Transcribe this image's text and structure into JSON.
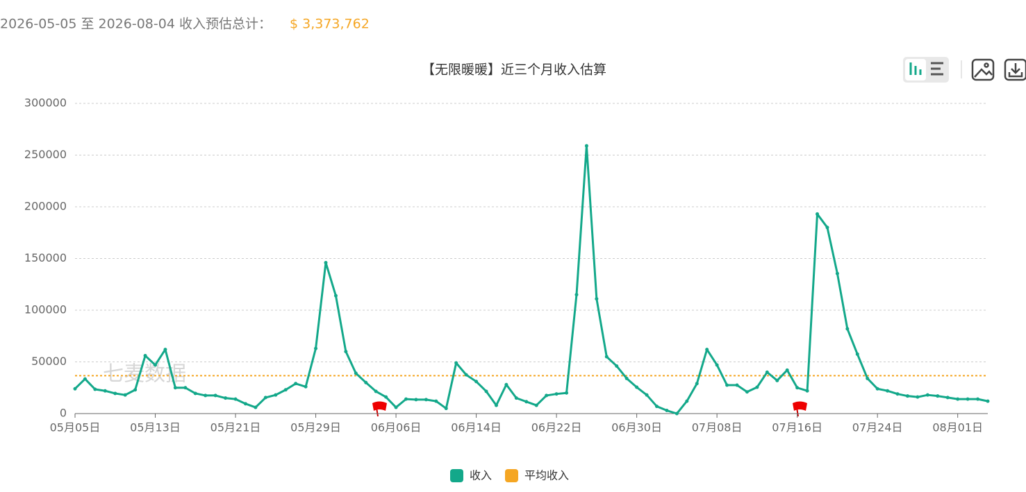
{
  "header": {
    "range_text": "2026-05-05 至 2026-08-04 收入预估总计：",
    "total": "$ 3,373,762"
  },
  "chart_data": {
    "type": "line",
    "title": "【无限暖暖】近三个月收入估算",
    "watermark": "七麦数据",
    "categories": [
      "05月05日",
      null,
      null,
      null,
      null,
      null,
      null,
      null,
      "05月13日",
      null,
      null,
      null,
      null,
      null,
      null,
      null,
      "05月21日",
      null,
      null,
      null,
      null,
      null,
      null,
      null,
      "05月29日",
      null,
      null,
      null,
      null,
      null,
      null,
      null,
      "06月06日",
      null,
      null,
      null,
      null,
      null,
      null,
      null,
      "06月14日",
      null,
      null,
      null,
      null,
      null,
      null,
      null,
      "06月22日",
      null,
      null,
      null,
      null,
      null,
      null,
      null,
      "06月30日",
      null,
      null,
      null,
      null,
      null,
      null,
      null,
      "07月08日",
      null,
      null,
      null,
      null,
      null,
      null,
      null,
      "07月16日",
      null,
      null,
      null,
      null,
      null,
      null,
      null,
      "07月24日",
      null,
      null,
      null,
      null,
      null,
      null,
      null,
      "08月01日",
      null,
      null,
      null
    ],
    "series": [
      {
        "name": "收入",
        "color": "#13a88a",
        "values": [
          24000,
          33500,
          23500,
          22000,
          19500,
          18000,
          23000,
          56000,
          47000,
          62000,
          25000,
          25000,
          19500,
          17500,
          17500,
          15000,
          14000,
          9500,
          6000,
          15500,
          18000,
          23000,
          29000,
          26000,
          63000,
          146000,
          114000,
          60000,
          39000,
          30000,
          21500,
          16000,
          6000,
          14000,
          13500,
          13500,
          12000,
          5000,
          49000,
          37500,
          31000,
          21500,
          8000,
          28000,
          15000,
          11500,
          8000,
          17500,
          19000,
          20000,
          115000,
          259000,
          111000,
          55000,
          46000,
          34000,
          25500,
          18000,
          7000,
          3000,
          0,
          12000,
          29000,
          62000,
          47000,
          27500,
          27500,
          21000,
          25500,
          40000,
          32000,
          42000,
          25000,
          22000,
          193000,
          180000,
          135500,
          82000,
          57500,
          34000,
          24000,
          22000,
          19000,
          17000,
          16000,
          18000,
          17000,
          15500,
          14000,
          14000,
          14000,
          12000
        ]
      },
      {
        "name": "平均收入",
        "color": "#f5a623",
        "value": 36671
      }
    ],
    "ylim": [
      0,
      300000
    ],
    "yticks": [
      0,
      50000,
      100000,
      150000,
      200000,
      250000,
      300000
    ],
    "grid": true
  }
}
